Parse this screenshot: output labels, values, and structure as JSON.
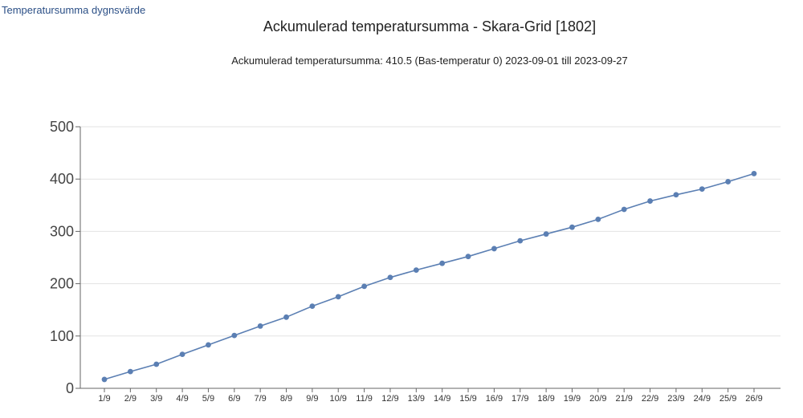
{
  "header": {
    "tab_label": "Temperatursumma dygnsvärde"
  },
  "colors": {
    "series": "#5b7fb3",
    "grid": "#e3e3e3",
    "axis": "#666666"
  },
  "chart_data": {
    "type": "line",
    "title": "Ackumulerad temperatursumma - Skara-Grid [1802]",
    "subtitle": "Ackumulerad temperatursumma: 410.5 (Bas-temperatur 0) 2023-09-01 till 2023-09-27",
    "xlabel": "",
    "ylabel": "",
    "ylim": [
      0,
      500
    ],
    "yticks": [
      0,
      100,
      200,
      300,
      400,
      500
    ],
    "grid": true,
    "legend": "none",
    "categories": [
      "1/9",
      "2/9",
      "3/9",
      "4/9",
      "5/9",
      "6/9",
      "7/9",
      "8/9",
      "9/9",
      "10/9",
      "11/9",
      "12/9",
      "13/9",
      "14/9",
      "15/9",
      "16/9",
      "17/9",
      "18/9",
      "19/9",
      "20/9",
      "21/9",
      "22/9",
      "23/9",
      "24/9",
      "25/9",
      "26/9"
    ],
    "values": [
      17,
      32,
      46,
      65,
      83,
      101,
      119,
      136,
      157,
      175,
      195,
      212,
      226,
      239,
      252,
      267,
      282,
      295,
      308,
      323,
      342,
      358,
      370,
      381,
      395,
      410.5
    ]
  }
}
